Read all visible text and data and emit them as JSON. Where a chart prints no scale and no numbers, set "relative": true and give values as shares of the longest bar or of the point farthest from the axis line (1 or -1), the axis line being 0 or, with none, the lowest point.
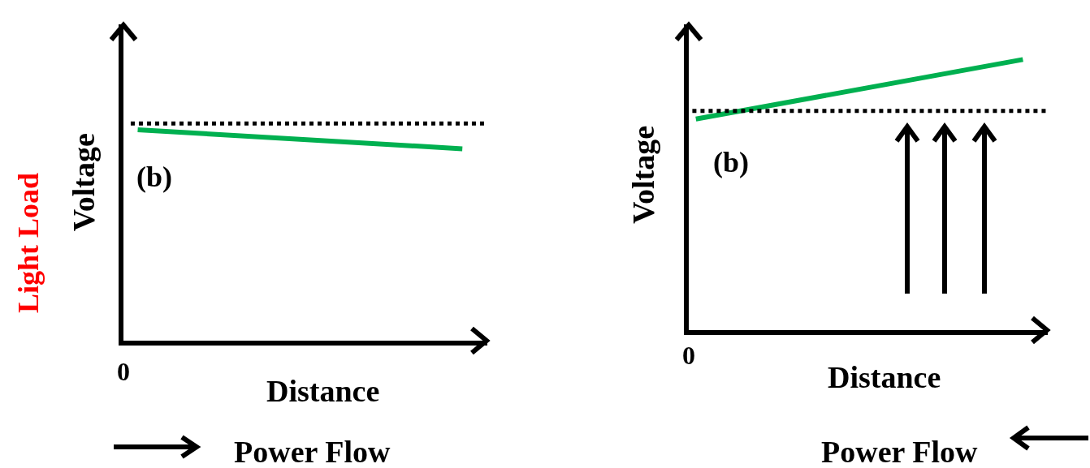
{
  "chart_data": [
    {
      "type": "line",
      "xlabel": "Distance",
      "ylabel": "Voltage",
      "relative": true,
      "marker": "none",
      "line_style": "solid",
      "categories": [
        null,
        null
      ],
      "series": [
        {
          "color": "#00b050",
          "values": [
            1,
            0.91
          ]
        }
      ],
      "ref_lines": [
        {
          "axis": "y",
          "value": 1.03,
          "color": "#000000",
          "line_style": "dotted"
        }
      ],
      "annotations": [
        "(b)",
        "0",
        "Light Load",
        "Power Flow"
      ]
    },
    {
      "type": "line",
      "xlabel": "Distance",
      "ylabel": "Voltage",
      "relative": true,
      "marker": "none",
      "line_style": "solid",
      "categories": [
        null,
        null
      ],
      "series": [
        {
          "color": "#00b050",
          "values": [
            0.78,
            1
          ]
        }
      ],
      "ref_lines": [
        {
          "axis": "y",
          "value": 0.81,
          "color": "#000000",
          "line_style": "dotted"
        }
      ],
      "annotations": [
        "(b)",
        "0",
        "Power Flow"
      ]
    }
  ]
}
